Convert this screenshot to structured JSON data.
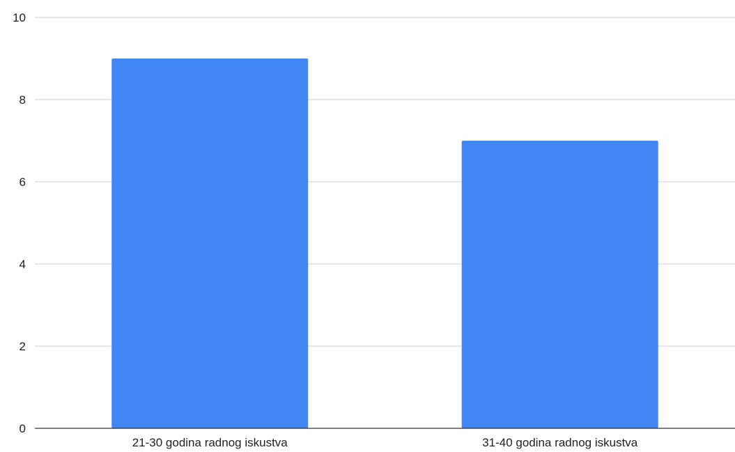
{
  "chart_data": {
    "type": "bar",
    "categories": [
      "21-30 godina radnog iskustva",
      "31-40 godina radnog iskustva"
    ],
    "values": [
      9,
      7
    ],
    "ylim": [
      0,
      10
    ],
    "yticks": [
      0,
      2,
      4,
      6,
      8,
      10
    ],
    "grid": true,
    "legend": "none",
    "bar_color": "#4285f4"
  }
}
